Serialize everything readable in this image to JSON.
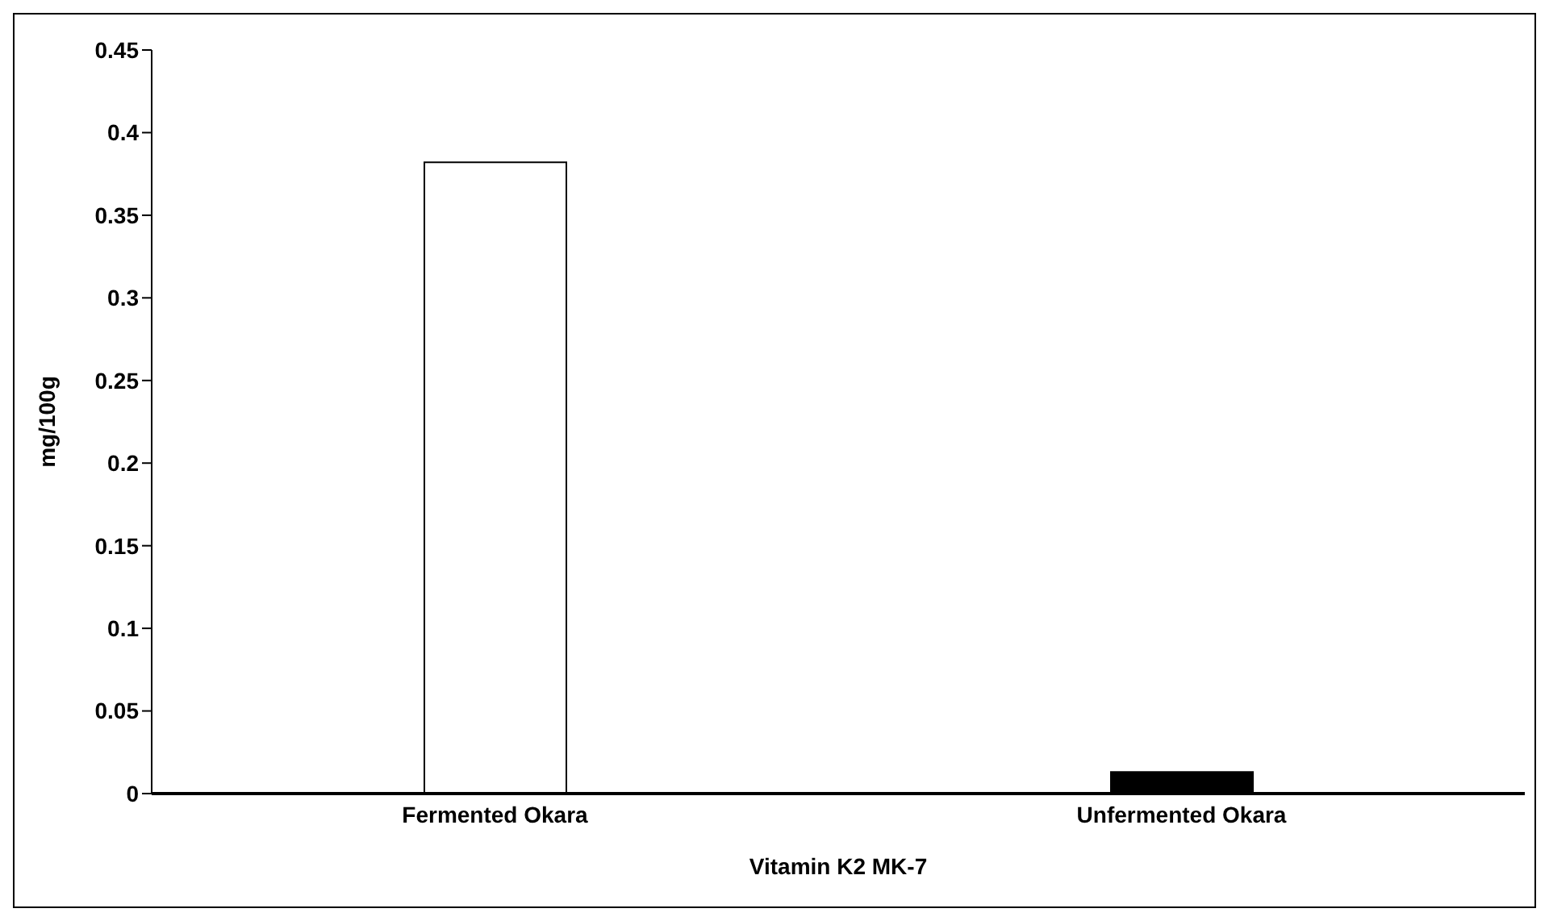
{
  "chart_data": {
    "type": "bar",
    "xlabel": "Vitamin K2 MK-7",
    "ylabel": "mg/100g",
    "categories": [
      "Fermented Okara",
      "Unfermented Okara"
    ],
    "values": [
      0.382,
      0.013
    ],
    "colors": [
      "#ffffff",
      "#000000"
    ],
    "ylim": [
      0,
      0.45
    ],
    "yticks": [
      0,
      0.05,
      0.1,
      0.15,
      0.2,
      0.25,
      0.3,
      0.35,
      0.4,
      0.45
    ],
    "grid": false,
    "legend": false
  }
}
